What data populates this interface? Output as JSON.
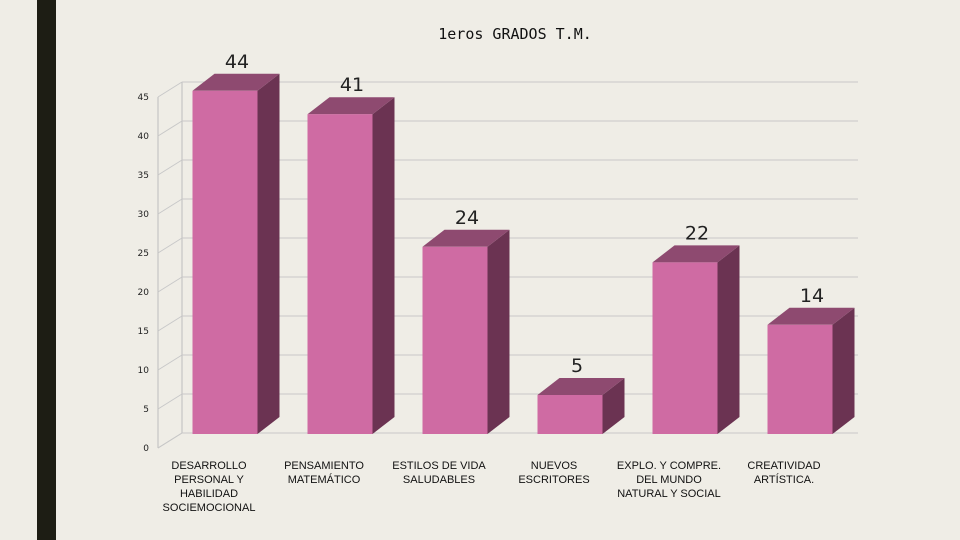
{
  "chart_data": {
    "type": "bar",
    "title": "1eros GRADOS T.M.",
    "categories": [
      [
        "DESARROLLO",
        "PERSONAL Y",
        "HABILIDAD",
        "SOCIEMOCIONAL"
      ],
      [
        "PENSAMIENTO",
        "MATEMÁTICO"
      ],
      [
        "ESTILOS DE VIDA",
        "SALUDABLES"
      ],
      [
        "NUEVOS",
        "ESCRITORES"
      ],
      [
        "EXPLO. Y COMPRE.",
        "DEL MUNDO",
        "NATURAL Y SOCIAL"
      ],
      [
        "CREATIVIDAD",
        "ARTÍSTICA."
      ]
    ],
    "values": [
      44,
      41,
      24,
      5,
      22,
      14
    ],
    "data_labels": [
      "44",
      "41",
      "24",
      "5",
      "22",
      "14"
    ],
    "ylim": [
      0,
      45
    ],
    "yticks": [
      0,
      5,
      10,
      15,
      20,
      25,
      30,
      35,
      40,
      45
    ],
    "grid": true,
    "colors": {
      "front": "#cf6ba3",
      "side": "#6b3352",
      "top": "#8e4a70",
      "grid": "#c8c8c8"
    }
  }
}
